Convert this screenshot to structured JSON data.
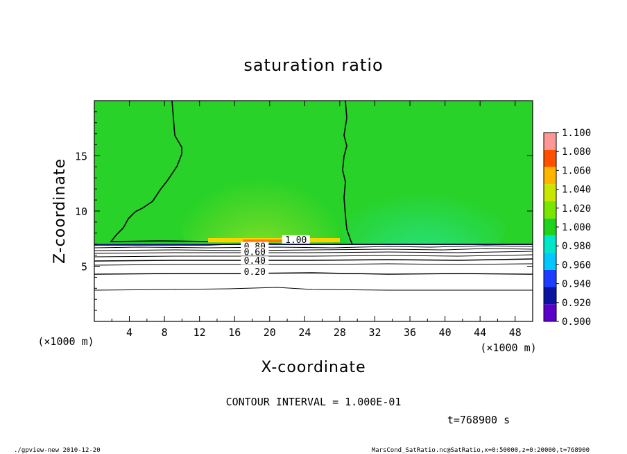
{
  "chart_data": {
    "type": "heatmap",
    "title": "saturation ratio",
    "xlabel": "X-coordinate",
    "ylabel": "Z-coordinate",
    "x_unit": "(×1000 m)",
    "z_unit": "(×1000 m)",
    "xlim": [
      0,
      50
    ],
    "zlim": [
      0,
      20
    ],
    "x_ticks": [
      4,
      8,
      12,
      16,
      20,
      24,
      28,
      32,
      36,
      40,
      44,
      48
    ],
    "z_ticks": [
      5,
      10,
      15
    ],
    "colorbar": {
      "levels": [
        0.9,
        0.92,
        0.94,
        0.96,
        0.98,
        1.0,
        1.02,
        1.04,
        1.06,
        1.08,
        1.1
      ],
      "labels": [
        "0.900",
        "0.920",
        "0.940",
        "0.960",
        "0.980",
        "1.000",
        "1.020",
        "1.040",
        "1.060",
        "1.080",
        "1.100"
      ],
      "colors": [
        "#5a00c8",
        "#0a14a0",
        "#1e3cff",
        "#00c8ff",
        "#00e6c8",
        "#1ed21e",
        "#78e600",
        "#c8e600",
        "#ffb400",
        "#ff5000",
        "#ff9696"
      ]
    },
    "contour_labels": [
      {
        "text": "1.00",
        "x": 23,
        "z": 7.3
      },
      {
        "text": "0.80",
        "x": 18.3,
        "z": 6.7
      },
      {
        "text": "0.60",
        "x": 18.3,
        "z": 6.2
      },
      {
        "text": "0.40",
        "x": 18.3,
        "z": 5.4
      },
      {
        "text": "0.20",
        "x": 18.3,
        "z": 4.4
      }
    ],
    "contour_interval": "CONTOUR INTERVAL = 1.000E-01",
    "time_label": "t=768900 s"
  },
  "footer": {
    "left": "./gpview-new  2010-12-20",
    "right": "MarsCond_SatRatio.nc@SatRatio,x=0:50000,z=0:20000,t=768900"
  }
}
